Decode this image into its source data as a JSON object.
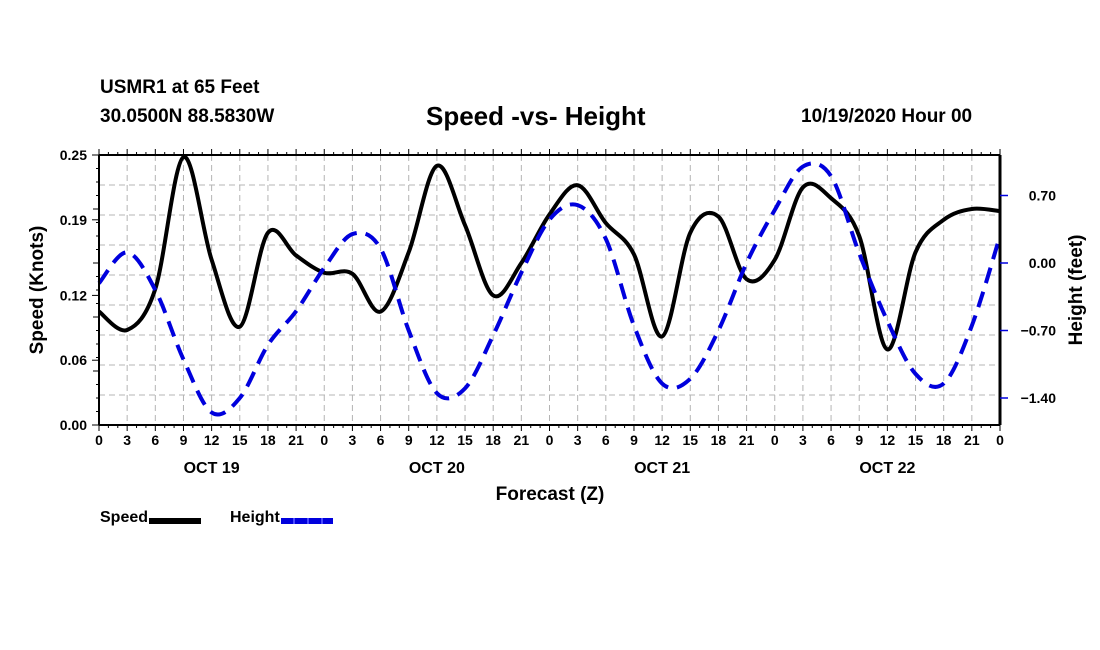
{
  "header": {
    "station": "USMR1 at 65 Feet",
    "coords": "30.0500N 88.5830W",
    "title": "Speed -vs- Height",
    "run_time": "10/19/2020 Hour 00"
  },
  "legend": {
    "items": [
      {
        "label": "Speed",
        "color": "#000000",
        "style": "solid"
      },
      {
        "label": "Height",
        "color": "#0000dd",
        "style": "dashed"
      }
    ]
  },
  "chart_data": {
    "type": "line",
    "title": "Speed -vs- Height",
    "xlabel": "Forecast (Z)",
    "ylabel": "Speed (Knots)",
    "y2label": "Height (feet)",
    "grid": true,
    "legend_position": "bottom-left",
    "x_range_hours": [
      0,
      96
    ],
    "x_tick_labels": [
      "0",
      "3",
      "6",
      "9",
      "12",
      "15",
      "18",
      "21",
      "0",
      "3",
      "6",
      "9",
      "12",
      "15",
      "18",
      "21",
      "0",
      "3",
      "6",
      "9",
      "12",
      "15",
      "18",
      "21",
      "0",
      "3",
      "6",
      "9",
      "12",
      "15",
      "18",
      "21",
      "0"
    ],
    "day_labels": [
      {
        "label": "OCT 19",
        "hour": 12
      },
      {
        "label": "OCT 20",
        "hour": 36
      },
      {
        "label": "OCT 21",
        "hour": 60
      },
      {
        "label": "OCT 22",
        "hour": 84
      }
    ],
    "ylim": [
      0.0,
      0.25
    ],
    "y_ticks": [
      0.0,
      0.06,
      0.12,
      0.19,
      0.25
    ],
    "y_tick_labels": [
      "0.00",
      "0.06",
      "0.12",
      "0.19",
      "0.25"
    ],
    "y2lim": [
      -1.68,
      1.12
    ],
    "y2_ticks": [
      -1.4,
      -0.7,
      0.0,
      0.7
    ],
    "y2_tick_labels": [
      "-1.40",
      "-0.70",
      "0.00",
      "0.70"
    ],
    "x": [
      0,
      3,
      6,
      9,
      12,
      15,
      18,
      21,
      24,
      27,
      30,
      33,
      36,
      39,
      42,
      45,
      48,
      51,
      54,
      57,
      60,
      63,
      66,
      69,
      72,
      75,
      78,
      81,
      84,
      87,
      90,
      93,
      96
    ],
    "series": [
      {
        "name": "Speed",
        "axis": "left",
        "color": "#000000",
        "style": "solid",
        "values": [
          0.105,
          0.088,
          0.126,
          0.248,
          0.153,
          0.091,
          0.178,
          0.157,
          0.141,
          0.14,
          0.105,
          0.16,
          0.24,
          0.185,
          0.12,
          0.15,
          0.195,
          0.222,
          0.187,
          0.158,
          0.082,
          0.178,
          0.193,
          0.135,
          0.153,
          0.22,
          0.21,
          0.175,
          0.07,
          0.16,
          0.19,
          0.2,
          0.198
        ]
      },
      {
        "name": "Height",
        "axis": "right",
        "color": "#0000dd",
        "style": "dashed",
        "values": [
          -0.21,
          0.11,
          -0.28,
          -1.0,
          -1.55,
          -1.4,
          -0.85,
          -0.5,
          -0.05,
          0.3,
          0.15,
          -0.7,
          -1.35,
          -1.3,
          -0.75,
          -0.1,
          0.45,
          0.6,
          0.25,
          -0.65,
          -1.25,
          -1.2,
          -0.7,
          0.0,
          0.55,
          1.0,
          0.9,
          0.1,
          -0.6,
          -1.15,
          -1.25,
          -0.65,
          0.28
        ]
      }
    ]
  }
}
